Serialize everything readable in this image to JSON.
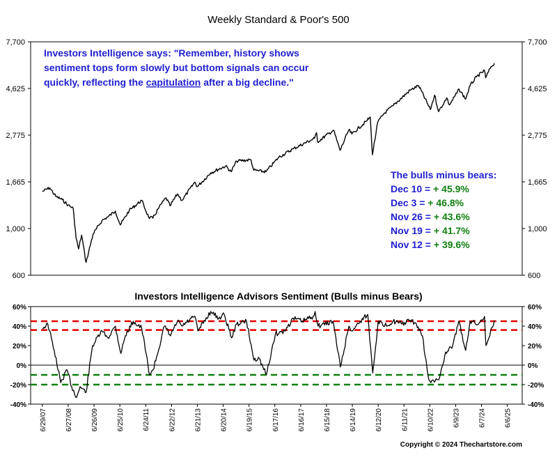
{
  "chart_data": [
    {
      "type": "line",
      "title": "Weekly Standard & Poor's 500",
      "yscale": "log",
      "ylim": [
        600,
        7700
      ],
      "yticks": [
        600,
        1000,
        1665,
        2775,
        4625,
        7700
      ],
      "ytick_labels": [
        "600",
        "1,000",
        "1,665",
        "2,775",
        "4,625",
        "7,700"
      ],
      "grid": false,
      "annotation": {
        "lines": [
          [
            "Investors Intelligence says: \"Remember, history shows"
          ],
          [
            "sentiment tops form slowly but bottom signals can occur"
          ],
          [
            "quickly, reflecting the ",
            "capitulation",
            " after a big decline.\""
          ]
        ],
        "underlined": "capitulation",
        "color": "#1f1fd0"
      },
      "readings": {
        "heading": "The bulls minus bears:",
        "items": [
          {
            "date": "Dec 10 =",
            "value": "+ 45.9%"
          },
          {
            "date": "Dec 3 =",
            "value": "+ 46.8%"
          },
          {
            "date": "Nov 26 =",
            "value": "+ 43.6%"
          },
          {
            "date": "Nov 19 =",
            "value": "+ 41.7%"
          },
          {
            "date": "Nov 12 =",
            "value": "+ 39.6%"
          }
        ],
        "label_color": "#1f1fd0",
        "value_color": "#118011"
      },
      "series": [
        {
          "x": [
            "2007-06-29",
            "2007-10-12",
            "2008-01-04",
            "2008-04-04",
            "2008-06-27",
            "2008-09-05",
            "2008-10-17",
            "2008-11-21",
            "2009-01-02",
            "2009-03-06",
            "2009-06-12",
            "2009-10-16",
            "2010-01-15",
            "2010-04-23",
            "2010-07-02",
            "2010-11-05",
            "2011-04-29",
            "2011-08-05",
            "2011-10-03",
            "2011-12-30",
            "2012-04-06",
            "2012-06-01",
            "2012-09-14",
            "2012-11-16",
            "2013-05-17",
            "2013-06-21",
            "2013-12-27",
            "2014-07-25",
            "2014-10-10",
            "2014-12-26",
            "2015-07-17",
            "2015-08-24",
            "2016-02-12",
            "2016-08-12",
            "2017-03-03",
            "2017-12-29",
            "2018-01-26",
            "2018-02-09",
            "2018-09-21",
            "2018-12-24",
            "2019-04-26",
            "2019-06-07",
            "2019-12-27",
            "2020-02-21",
            "2020-03-23",
            "2020-06-05",
            "2020-09-04",
            "2021-01-08",
            "2021-09-03",
            "2022-01-03",
            "2022-06-17",
            "2022-08-16",
            "2022-10-12",
            "2023-02-03",
            "2023-03-13",
            "2023-07-28",
            "2023-10-27",
            "2023-12-29",
            "2024-03-29",
            "2024-07-19",
            "2024-08-05",
            "2024-10-18",
            "2024-12-06"
          ],
          "y": [
            1500,
            1560,
            1420,
            1370,
            1290,
            1250,
            900,
            800,
            930,
            690,
            940,
            1090,
            1140,
            1210,
            1040,
            1220,
            1360,
            1130,
            1120,
            1260,
            1400,
            1280,
            1460,
            1360,
            1660,
            1580,
            1840,
            1980,
            1860,
            2090,
            2120,
            1890,
            1860,
            2180,
            2390,
            2680,
            2850,
            2580,
            2930,
            2350,
            2940,
            2810,
            3230,
            3380,
            2240,
            3190,
            3520,
            3830,
            4530,
            4770,
            3670,
            4300,
            3590,
            4170,
            3860,
            4580,
            4120,
            4770,
            5250,
            5620,
            5200,
            5860,
            6090
          ]
        }
      ]
    },
    {
      "type": "line",
      "title": "Investors Intelligence Advisors Sentiment (Bulls minus Bears)",
      "ylim": [
        -40,
        60
      ],
      "yticks": [
        -40,
        -20,
        0,
        20,
        40,
        60
      ],
      "ytick_labels": [
        "-40%",
        "-20%",
        "0%",
        "20%",
        "40%",
        "60%"
      ],
      "reference_lines": [
        {
          "y": 45,
          "color": "#e00000",
          "style": "dashed"
        },
        {
          "y": 36,
          "color": "#e00000",
          "style": "dashed"
        },
        {
          "y": -10,
          "color": "#118011",
          "style": "dashed"
        },
        {
          "y": -20,
          "color": "#118011",
          "style": "dashed"
        }
      ],
      "zero_line": true,
      "x_tick_labels": [
        "6/29/07",
        "6/27/08",
        "6/26/09",
        "6/25/10",
        "6/24/11",
        "6/22/12",
        "6/21/13",
        "6/20/14",
        "6/19/15",
        "6/17/16",
        "6/16/17",
        "6/15/18",
        "6/14/19",
        "6/12/20",
        "6/11/21",
        "6/10/22",
        "6/9/23",
        "6/7/24",
        "6/6/25"
      ],
      "series": [
        {
          "x": [
            "2007-06-29",
            "2007-09-14",
            "2007-12-14",
            "2008-03-14",
            "2008-06-13",
            "2008-08-15",
            "2008-10-24",
            "2008-12-12",
            "2009-03-06",
            "2009-06-05",
            "2009-10-16",
            "2010-01-08",
            "2010-04-23",
            "2010-07-09",
            "2010-09-10",
            "2010-12-31",
            "2011-04-29",
            "2011-08-19",
            "2011-10-07",
            "2012-03-16",
            "2012-06-08",
            "2012-09-14",
            "2012-11-16",
            "2013-05-17",
            "2013-06-28",
            "2013-12-27",
            "2014-04-18",
            "2014-07-04",
            "2014-10-17",
            "2014-12-26",
            "2015-05-15",
            "2015-08-28",
            "2015-10-30",
            "2016-02-19",
            "2016-06-24",
            "2016-11-04",
            "2017-03-03",
            "2017-07-07",
            "2017-12-08",
            "2018-01-05",
            "2018-02-16",
            "2018-09-14",
            "2018-12-28",
            "2019-04-26",
            "2019-06-07",
            "2019-10-04",
            "2020-01-17",
            "2020-03-27",
            "2020-06-12",
            "2020-09-11",
            "2021-01-08",
            "2021-05-14",
            "2021-09-03",
            "2021-12-03",
            "2022-02-25",
            "2022-05-13",
            "2022-06-24",
            "2022-10-14",
            "2023-01-06",
            "2023-04-28",
            "2023-07-21",
            "2023-10-27",
            "2023-12-29",
            "2024-04-26",
            "2024-07-19",
            "2024-08-09",
            "2024-12-06"
          ],
          "y": [
            38,
            42,
            15,
            -18,
            -5,
            -22,
            -33,
            -22,
            -28,
            20,
            35,
            28,
            40,
            12,
            30,
            45,
            38,
            -10,
            -5,
            40,
            30,
            45,
            40,
            50,
            35,
            55,
            48,
            52,
            28,
            42,
            45,
            5,
            8,
            -10,
            32,
            35,
            48,
            45,
            50,
            55,
            40,
            45,
            -2,
            40,
            35,
            45,
            52,
            -8,
            45,
            40,
            45,
            42,
            46,
            42,
            30,
            -10,
            -18,
            -15,
            10,
            20,
            45,
            15,
            45,
            42,
            50,
            20,
            46
          ]
        }
      ]
    }
  ],
  "copyright": "Copyright © 2024 Thechartstore.com"
}
